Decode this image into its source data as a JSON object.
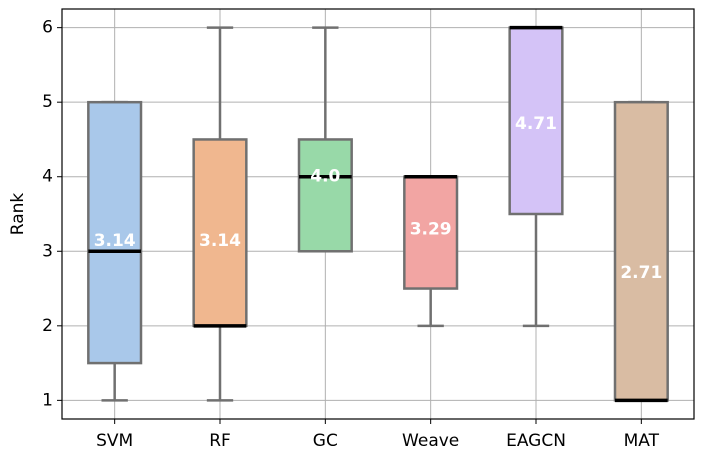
{
  "chart_data": {
    "type": "box",
    "title": "",
    "xlabel": "",
    "ylabel": "Rank",
    "ylim": [
      0.75,
      6.25
    ],
    "yticks": [
      1,
      2,
      3,
      4,
      5,
      6
    ],
    "grid": true,
    "legend": "none",
    "boxes": [
      {
        "label": "SVM",
        "whisker_low": 1,
        "q1": 1.5,
        "median": 3,
        "q3": 5,
        "whisker_high": 5,
        "mean": 3.14,
        "mean_label": "3.14",
        "color": "#a9c8ea"
      },
      {
        "label": "RF",
        "whisker_low": 1,
        "q1": 2,
        "median": 2,
        "q3": 4.5,
        "whisker_high": 6,
        "mean": 3.14,
        "mean_label": "3.14",
        "color": "#f0b78f"
      },
      {
        "label": "GC",
        "whisker_low": 3,
        "q1": 3,
        "median": 4,
        "q3": 4.5,
        "whisker_high": 6,
        "mean": 4.0,
        "mean_label": "4.0",
        "color": "#98d9a8"
      },
      {
        "label": "Weave",
        "whisker_low": 2,
        "q1": 2.5,
        "median": 4,
        "q3": 4,
        "whisker_high": 4,
        "mean": 3.29,
        "mean_label": "3.29",
        "color": "#f2a5a3"
      },
      {
        "label": "EAGCN",
        "whisker_low": 2,
        "q1": 3.5,
        "median": 6,
        "q3": 6,
        "whisker_high": 6,
        "mean": 4.71,
        "mean_label": "4.71",
        "color": "#d4c3f7"
      },
      {
        "label": "MAT",
        "whisker_low": 1,
        "q1": 1,
        "median": 1,
        "q3": 5,
        "whisker_high": 5,
        "mean": 2.71,
        "mean_label": "2.71",
        "color": "#d9bca3"
      }
    ]
  }
}
